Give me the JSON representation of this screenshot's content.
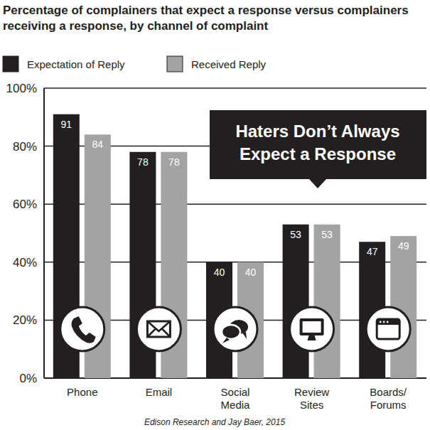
{
  "chart_data": {
    "type": "bar",
    "title": "Percentage of complainers that expect a response versus complainers receiving a response, by channel of complaint",
    "categories": [
      "Phone",
      "Email",
      "Social Media",
      "Review Sites",
      "Boards/ Forums"
    ],
    "series": [
      {
        "name": "Expectation of Reply",
        "color": "#231f20",
        "values": [
          91,
          78,
          40,
          53,
          47
        ]
      },
      {
        "name": "Received Reply",
        "color": "#a3a3a3",
        "values": [
          84,
          78,
          40,
          53,
          49
        ]
      }
    ],
    "ylim": [
      0,
      100
    ],
    "yticks": [
      {
        "value": 0,
        "label": "0%"
      },
      {
        "value": 20,
        "label": "20%"
      },
      {
        "value": 40,
        "label": "40%"
      },
      {
        "value": 60,
        "label": "60%"
      },
      {
        "value": 80,
        "label": "80%"
      },
      {
        "value": 100,
        "label": "100%"
      }
    ],
    "grid": true,
    "legend": "top-left",
    "data_labels": true,
    "annotations": [
      "Haters Don’t Always Expect a Response"
    ],
    "source": "Edison Research and Jay Baer, 2015"
  }
}
